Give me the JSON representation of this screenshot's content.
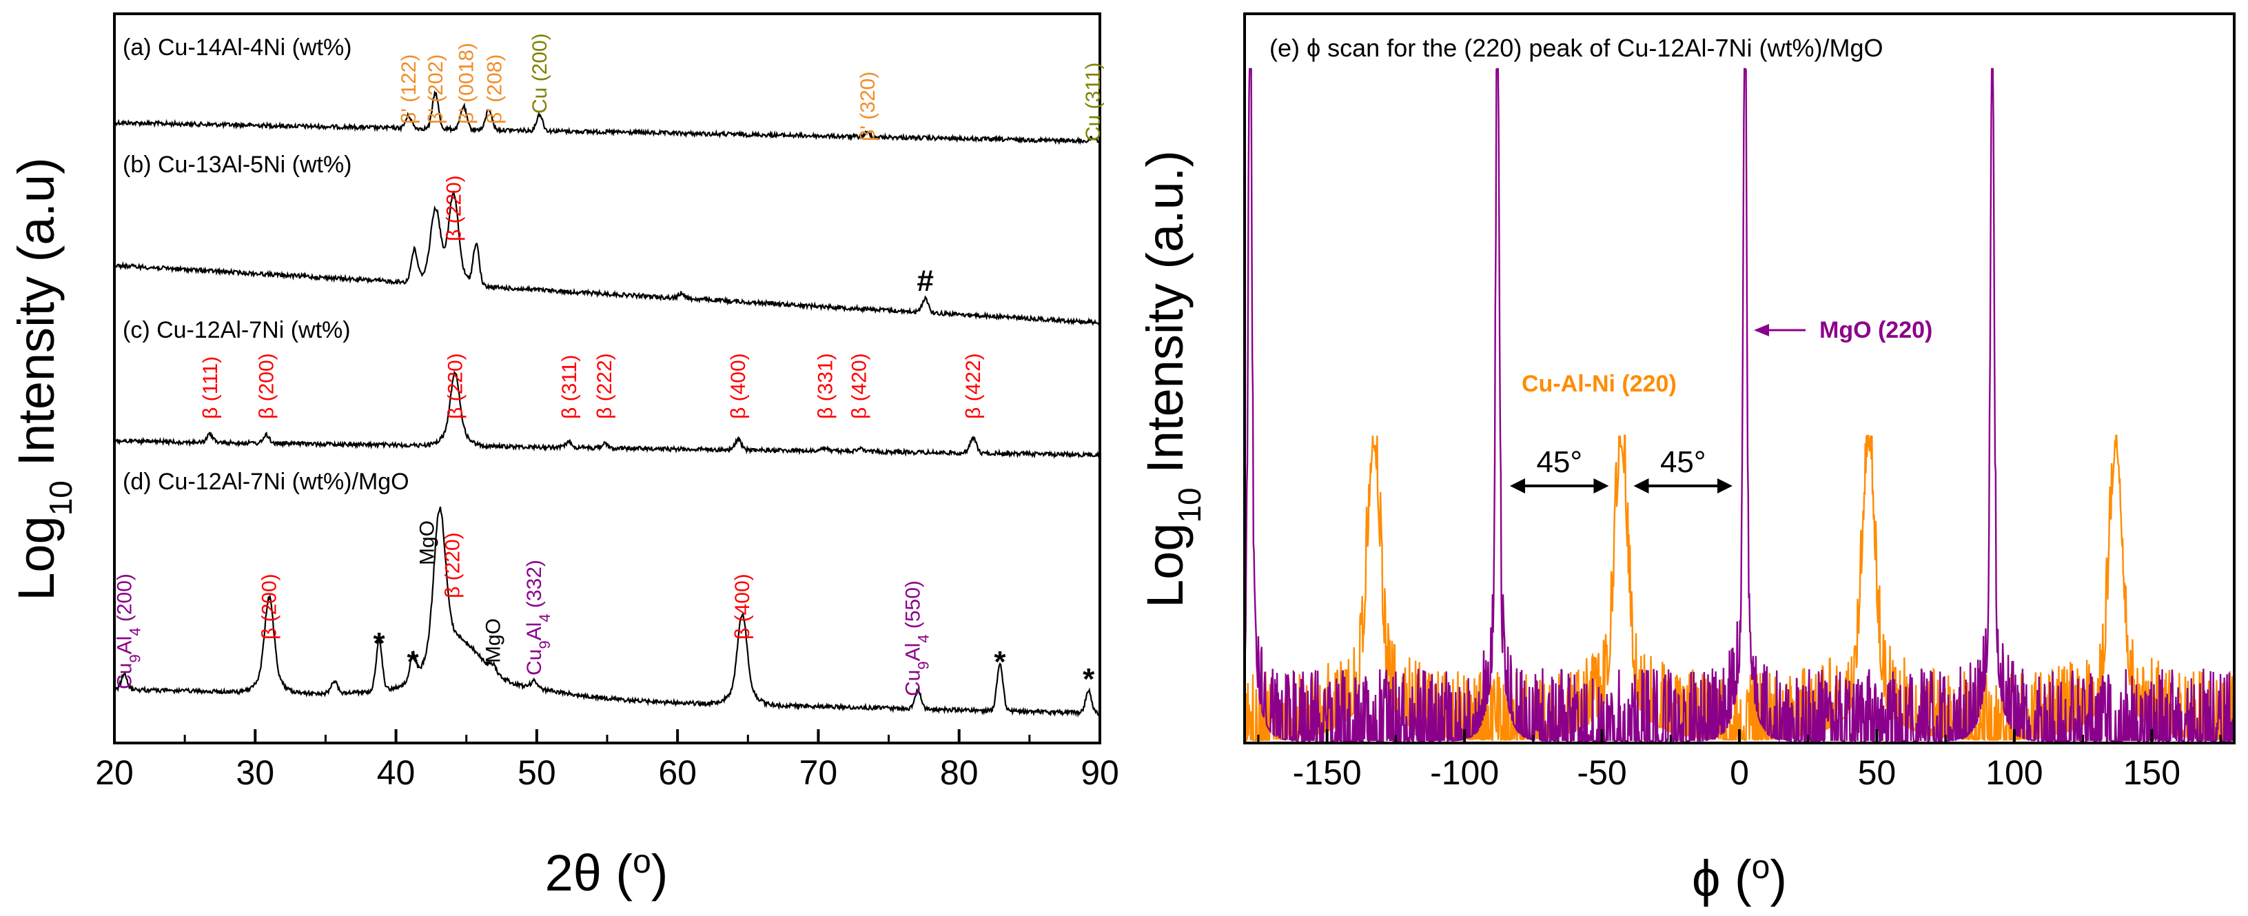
{
  "chart_data": [
    {
      "type": "line",
      "panel": "left",
      "xlabel": "2θ (°)",
      "ylabel": "Log10 Intensity (a.u)",
      "xlim": [
        20,
        90
      ],
      "x_ticks": [
        "20",
        "30",
        "40",
        "50",
        "60",
        "70",
        "80",
        "90"
      ],
      "y_tick_labels": false,
      "colors": {
        "trace": "#000000",
        "beta": "#ff0000",
        "beta_prime": "#f28c28",
        "cu": "#808000",
        "cu9al4": "#8b008b",
        "mgo": "#000000"
      },
      "series": [
        {
          "label": "(a) Cu-14Al-4Ni (wt%)",
          "baseline_offset": 3,
          "peaks": [
            {
              "x": 40.9,
              "h": 0.12
            },
            {
              "x": 42.8,
              "h": 0.35
            },
            {
              "x": 44.8,
              "h": 0.22
            },
            {
              "x": 46.6,
              "h": 0.2
            },
            {
              "x": 50.2,
              "h": 0.16
            },
            {
              "x": 73.5,
              "h": 0.04
            },
            {
              "x": 89.5,
              "h": 0.03
            }
          ],
          "annotations": [
            {
              "text": "β' (122)",
              "x": 40.9,
              "color": "beta_prime"
            },
            {
              "text": "β' (202)",
              "x": 42.8,
              "color": "beta_prime"
            },
            {
              "text": "β' (0018)",
              "x": 45.0,
              "color": "beta_prime"
            },
            {
              "text": "β' (208)",
              "x": 47.0,
              "color": "beta_prime"
            },
            {
              "text": "Cu (200)",
              "x": 50.2,
              "color": "cu"
            },
            {
              "text": "β' (320)",
              "x": 73.5,
              "color": "beta_prime"
            },
            {
              "text": "Cu (311)",
              "x": 89.5,
              "color": "cu"
            }
          ]
        },
        {
          "label": "(b) Cu-13Al-5Ni (wt%)",
          "baseline_offset": 2,
          "peaks": [
            {
              "x": 41.3,
              "h": 0.3
            },
            {
              "x": 42.8,
              "h": 0.55
            },
            {
              "x": 44.1,
              "h": 0.7
            },
            {
              "x": 45.7,
              "h": 0.4
            },
            {
              "x": 60.3,
              "h": 0.05
            },
            {
              "x": 77.6,
              "h": 0.14
            }
          ],
          "annotations": [
            {
              "text": "β (220)",
              "x": 44.1,
              "color": "beta"
            },
            {
              "text": "#",
              "x": 77.6,
              "color": "mgo"
            }
          ]
        },
        {
          "label": "(c) Cu-12Al-7Ni (wt%)",
          "baseline_offset": 1,
          "peaks": [
            {
              "x": 26.8,
              "h": 0.08
            },
            {
              "x": 30.8,
              "h": 0.08
            },
            {
              "x": 44.2,
              "h": 0.55
            },
            {
              "x": 52.3,
              "h": 0.06
            },
            {
              "x": 54.8,
              "h": 0.04
            },
            {
              "x": 64.3,
              "h": 0.1
            },
            {
              "x": 70.5,
              "h": 0.03
            },
            {
              "x": 72.9,
              "h": 0.03
            },
            {
              "x": 81.0,
              "h": 0.15
            }
          ],
          "annotations": [
            {
              "text": "β (111)",
              "x": 26.8,
              "color": "beta"
            },
            {
              "text": "β (200)",
              "x": 30.8,
              "color": "beta"
            },
            {
              "text": "β (220)",
              "x": 44.2,
              "color": "beta"
            },
            {
              "text": "β (311)",
              "x": 52.3,
              "color": "beta"
            },
            {
              "text": "β (222)",
              "x": 54.8,
              "color": "beta"
            },
            {
              "text": "β (400)",
              "x": 64.3,
              "color": "beta"
            },
            {
              "text": "β (331)",
              "x": 70.5,
              "color": "beta"
            },
            {
              "text": "β (420)",
              "x": 72.9,
              "color": "beta"
            },
            {
              "text": "β (422)",
              "x": 81.0,
              "color": "beta"
            }
          ]
        },
        {
          "label": "(d) Cu-12Al-7Ni (wt%)/MgO",
          "baseline_offset": 0,
          "peaks": [
            {
              "x": 20.7,
              "h": 0.12
            },
            {
              "x": 31.0,
              "h": 0.62
            },
            {
              "x": 35.6,
              "h": 0.1
            },
            {
              "x": 38.8,
              "h": 0.4
            },
            {
              "x": 41.2,
              "h": 0.2
            },
            {
              "x": 43.1,
              "h": 1.0
            },
            {
              "x": 46.9,
              "h": 0.05
            },
            {
              "x": 49.8,
              "h": 0.06
            },
            {
              "x": 64.6,
              "h": 0.58
            },
            {
              "x": 77.1,
              "h": 0.15
            },
            {
              "x": 82.9,
              "h": 0.38
            },
            {
              "x": 89.2,
              "h": 0.18
            }
          ],
          "annotations": [
            {
              "text": "Cu9Al4 (200)",
              "x": 20.7,
              "color": "cu9al4"
            },
            {
              "text": "β (200)",
              "x": 31.0,
              "color": "beta"
            },
            {
              "text": "*",
              "x": 38.8,
              "color": "mgo"
            },
            {
              "text": "*",
              "x": 41.2,
              "color": "mgo"
            },
            {
              "text": "MgO",
              "x": 42.2,
              "color": "mgo"
            },
            {
              "text": "β (220)",
              "x": 44.0,
              "color": "beta"
            },
            {
              "text": "MgO",
              "x": 46.9,
              "color": "mgo"
            },
            {
              "text": "Cu9Al4 (332)",
              "x": 49.8,
              "color": "cu9al4"
            },
            {
              "text": "β (400)",
              "x": 64.6,
              "color": "beta"
            },
            {
              "text": "Cu9Al4 (550)",
              "x": 76.7,
              "color": "cu9al4"
            },
            {
              "text": "*",
              "x": 82.9,
              "color": "mgo"
            },
            {
              "text": "*",
              "x": 89.2,
              "color": "mgo"
            }
          ]
        }
      ]
    },
    {
      "type": "line",
      "panel": "right",
      "title": "(e) ϕ scan for the (220) peak of Cu-12Al-7Ni (wt%)/MgO",
      "xlabel": "ϕ (°)",
      "ylabel": "Log10 Intensity (a.u.)",
      "xlim": [
        -180,
        180
      ],
      "x_ticks": [
        "-150",
        "-100",
        "-50",
        "0",
        "50",
        "100",
        "150"
      ],
      "y_tick_labels": false,
      "series": [
        {
          "name": "MgO (220)",
          "color": "#8b008b",
          "peaks": [
            -178,
            -88,
            2,
            92
          ]
        },
        {
          "name": "Cu-Al-Ni (220)",
          "color": "#ff8c00",
          "peaks": [
            -133,
            -43,
            47,
            137
          ]
        }
      ],
      "annotations": [
        {
          "text": "MgO (220)",
          "color": "#8b008b"
        },
        {
          "text": "Cu-Al-Ni (220)",
          "color": "#ff8c00"
        },
        {
          "text": "45°",
          "from": -88,
          "to": -43
        },
        {
          "text": "45°",
          "from": -43,
          "to": 2
        }
      ]
    }
  ]
}
